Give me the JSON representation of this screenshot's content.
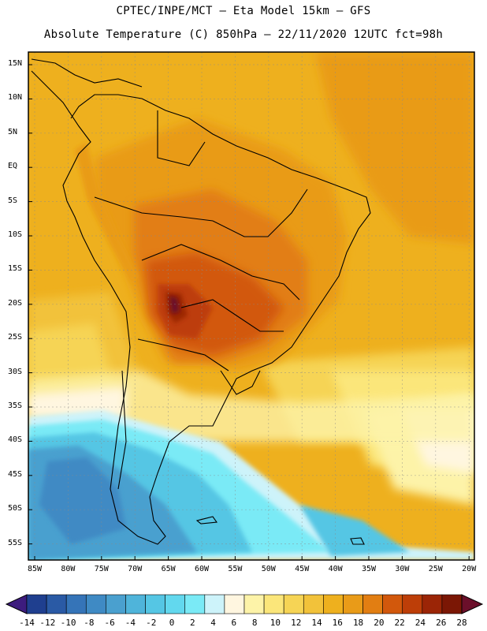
{
  "header": {
    "line1": "CPTEC/INPE/MCT –  Eta Model 15km – GFS",
    "line2": "Absolute Temperature (C) 850hPa – 22/11/2020 12UTC fct=98h"
  },
  "lat_labels": [
    "15N",
    "10N",
    "5N",
    "EQ",
    "5S",
    "10S",
    "15S",
    "20S",
    "25S",
    "30S",
    "35S",
    "40S",
    "45S",
    "50S",
    "55S"
  ],
  "lon_labels": [
    "85W",
    "80W",
    "75W",
    "70W",
    "65W",
    "60W",
    "55W",
    "50W",
    "45W",
    "40W",
    "35W",
    "30W",
    "25W",
    "20W"
  ],
  "colorbar": {
    "labels": [
      "-14",
      "-12",
      "-10",
      "-8",
      "-6",
      "-4",
      "-2",
      "0",
      "2",
      "4",
      "6",
      "8",
      "10",
      "12",
      "14",
      "16",
      "18",
      "20",
      "22",
      "24",
      "26",
      "28"
    ],
    "colors": [
      "#1f3f8f",
      "#2a5aa5",
      "#3574b8",
      "#3f8ac4",
      "#4aa0cf",
      "#4fb4da",
      "#55c6e4",
      "#62d8ee",
      "#7aeaf6",
      "#cdf3fa",
      "#fff6e0",
      "#fdf3a8",
      "#fbe67a",
      "#f6d455",
      "#f2c23a",
      "#eeb01e",
      "#e99b18",
      "#e27e12",
      "#d2580c",
      "#bd3e08",
      "#9b2506",
      "#7b1705"
    ],
    "under_color": "#3d1c7e",
    "over_color": "#6b0f2a"
  }
}
